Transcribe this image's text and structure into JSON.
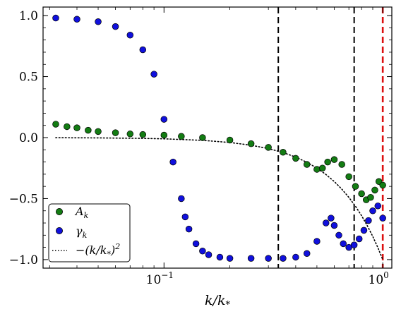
{
  "chart_data": {
    "type": "scatter",
    "xscale": "log",
    "xlim": [
      0.028,
      1.1
    ],
    "ylim": [
      -1.07,
      1.07
    ],
    "xlabel": "k/k_*",
    "x_major_ticks": [
      {
        "value": 0.1,
        "label": "10^{-1}"
      },
      {
        "value": 1.0,
        "label": "10^{0}"
      }
    ],
    "y_ticks": [
      {
        "value": -1.0,
        "label": "−1.0"
      },
      {
        "value": -0.5,
        "label": "−0.5"
      },
      {
        "value": 0.0,
        "label": "0.0"
      },
      {
        "value": 0.5,
        "label": "0.5"
      },
      {
        "value": 1.0,
        "label": "1.0"
      }
    ],
    "vlines": [
      {
        "x": 0.333,
        "color": "#000000"
      },
      {
        "x": 0.74,
        "color": "#000000"
      },
      {
        "x": 1.0,
        "color": "#dd1111"
      }
    ],
    "legend_position": "lower-left",
    "legend": [
      {
        "label": "A_k",
        "marker": "circle",
        "color": "#137c13"
      },
      {
        "label": "γ_k",
        "marker": "circle",
        "color": "#1010dd"
      },
      {
        "label": "−(k/k_*)²",
        "marker": "dotted-line",
        "color": "#000000"
      }
    ],
    "series": [
      {
        "name": "A_k",
        "color": "#137c13",
        "x": [
          0.032,
          0.036,
          0.04,
          0.045,
          0.05,
          0.06,
          0.07,
          0.08,
          0.1,
          0.12,
          0.15,
          0.2,
          0.25,
          0.3,
          0.35,
          0.4,
          0.45,
          0.5,
          0.53,
          0.56,
          0.6,
          0.65,
          0.7,
          0.75,
          0.8,
          0.84,
          0.88,
          0.92,
          0.96,
          1.0
        ],
        "y": [
          0.11,
          0.09,
          0.08,
          0.06,
          0.05,
          0.04,
          0.03,
          0.025,
          0.02,
          0.01,
          0.0,
          -0.02,
          -0.05,
          -0.08,
          -0.12,
          -0.17,
          -0.22,
          -0.26,
          -0.25,
          -0.2,
          -0.18,
          -0.22,
          -0.32,
          -0.4,
          -0.46,
          -0.51,
          -0.49,
          -0.43,
          -0.36,
          -0.39
        ]
      },
      {
        "name": "γ_k",
        "color": "#1010dd",
        "x": [
          0.032,
          0.04,
          0.05,
          0.06,
          0.07,
          0.08,
          0.09,
          0.1,
          0.11,
          0.12,
          0.125,
          0.13,
          0.14,
          0.15,
          0.16,
          0.18,
          0.2,
          0.25,
          0.3,
          0.35,
          0.4,
          0.45,
          0.5,
          0.55,
          0.58,
          0.6,
          0.63,
          0.66,
          0.7,
          0.74,
          0.78,
          0.82,
          0.86,
          0.9,
          0.95,
          1.0
        ],
        "y": [
          0.98,
          0.97,
          0.95,
          0.91,
          0.84,
          0.72,
          0.52,
          0.15,
          -0.2,
          -0.5,
          -0.65,
          -0.75,
          -0.87,
          -0.93,
          -0.96,
          -0.98,
          -0.99,
          -0.99,
          -0.99,
          -0.99,
          -0.98,
          -0.95,
          -0.85,
          -0.7,
          -0.66,
          -0.72,
          -0.8,
          -0.87,
          -0.9,
          -0.88,
          -0.83,
          -0.76,
          -0.68,
          -0.6,
          -0.56,
          -0.66
        ]
      },
      {
        "name": "−(k/k_*)²",
        "style": "dotted-line",
        "color": "#000000",
        "x": [
          0.032,
          0.05,
          0.08,
          0.1,
          0.15,
          0.2,
          0.25,
          0.3,
          0.35,
          0.4,
          0.45,
          0.5,
          0.55,
          0.6,
          0.65,
          0.7,
          0.75,
          0.8,
          0.85,
          0.9,
          0.95,
          1.0
        ],
        "y": [
          -0.001,
          -0.0025,
          -0.0064,
          -0.01,
          -0.0225,
          -0.04,
          -0.0625,
          -0.09,
          -0.1225,
          -0.16,
          -0.2025,
          -0.25,
          -0.3025,
          -0.36,
          -0.4225,
          -0.49,
          -0.5625,
          -0.64,
          -0.7225,
          -0.81,
          -0.9025,
          -1.0
        ]
      }
    ]
  }
}
